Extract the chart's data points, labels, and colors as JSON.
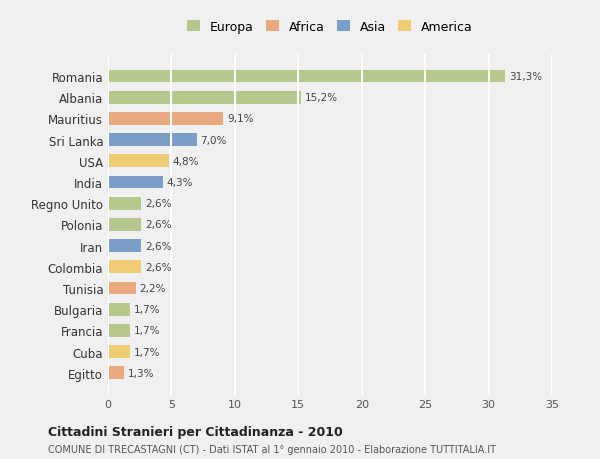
{
  "countries": [
    "Romania",
    "Albania",
    "Mauritius",
    "Sri Lanka",
    "USA",
    "India",
    "Regno Unito",
    "Polonia",
    "Iran",
    "Colombia",
    "Tunisia",
    "Bulgaria",
    "Francia",
    "Cuba",
    "Egitto"
  ],
  "values": [
    31.3,
    15.2,
    9.1,
    7.0,
    4.8,
    4.3,
    2.6,
    2.6,
    2.6,
    2.6,
    2.2,
    1.7,
    1.7,
    1.7,
    1.3
  ],
  "labels": [
    "31,3%",
    "15,2%",
    "9,1%",
    "7,0%",
    "4,8%",
    "4,3%",
    "2,6%",
    "2,6%",
    "2,6%",
    "2,6%",
    "2,2%",
    "1,7%",
    "1,7%",
    "1,7%",
    "1,3%"
  ],
  "continents": [
    "Europa",
    "Europa",
    "Africa",
    "Asia",
    "America",
    "Asia",
    "Europa",
    "Europa",
    "Asia",
    "America",
    "Africa",
    "Europa",
    "Europa",
    "America",
    "Africa"
  ],
  "colors": {
    "Europa": "#b5c98e",
    "Africa": "#e8a97e",
    "Asia": "#7b9ec7",
    "America": "#f0cc74"
  },
  "legend_order": [
    "Europa",
    "Africa",
    "Asia",
    "America"
  ],
  "bg_color": "#f0f0f0",
  "grid_color": "#ffffff",
  "title": "Cittadini Stranieri per Cittadinanza - 2010",
  "subtitle": "COMUNE DI TRECASTAGNI (CT) - Dati ISTAT al 1° gennaio 2010 - Elaborazione TUTTITALIA.IT",
  "xlim": [
    0,
    35
  ],
  "xticks": [
    0,
    5,
    10,
    15,
    20,
    25,
    30,
    35
  ]
}
